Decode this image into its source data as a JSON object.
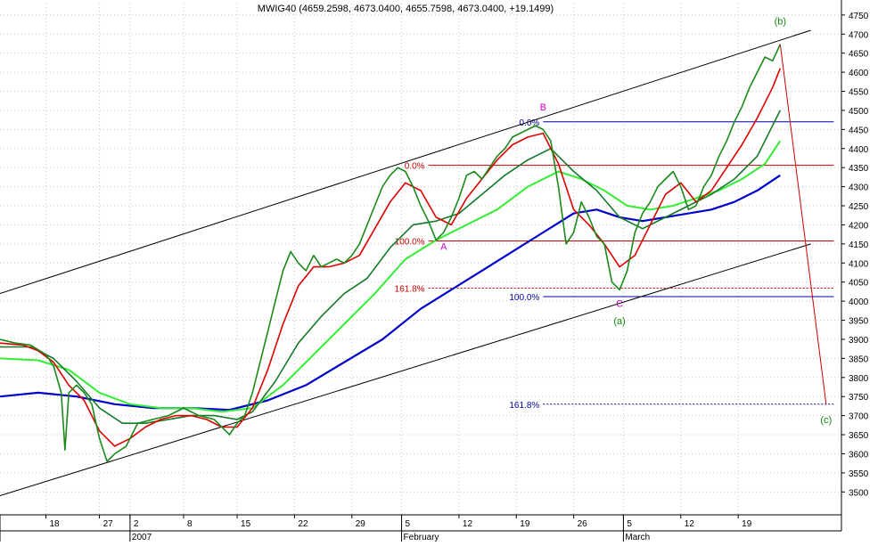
{
  "chart_data": {
    "type": "line",
    "title": "MWIG40 (4659.2598, 4673.0400, 4655.7598, 4673.0400, +19.1499)",
    "ylim": [
      3440,
      4780
    ],
    "y_ticks": [
      3500,
      3550,
      3600,
      3650,
      3700,
      3750,
      3800,
      3850,
      3900,
      3950,
      4000,
      4050,
      4100,
      4150,
      4200,
      4250,
      4300,
      4350,
      4400,
      4450,
      4500,
      4550,
      4600,
      4650,
      4700,
      4750
    ],
    "x_day_ticks": [
      {
        "day": "18",
        "month": 1,
        "date": 18
      },
      {
        "day": "27",
        "month": 1,
        "date": 27
      },
      {
        "day": "2",
        "month": 2,
        "date": 2
      },
      {
        "day": "8",
        "month": 2,
        "date": 8
      },
      {
        "day": "15",
        "month": 2,
        "date": 15
      },
      {
        "day": "22",
        "month": 2,
        "date": 22
      },
      {
        "day": "29",
        "month": 2,
        "date": 29
      },
      {
        "day": "5",
        "month": 3,
        "date": 5
      },
      {
        "day": "12",
        "month": 3,
        "date": 12
      },
      {
        "day": "19",
        "month": 3,
        "date": 19
      },
      {
        "day": "26",
        "month": 3,
        "date": 26
      },
      {
        "day": "5",
        "month": 4,
        "date": 5
      },
      {
        "day": "12",
        "month": 4,
        "date": 12
      },
      {
        "day": "19",
        "month": 4,
        "date": 19
      }
    ],
    "x_month_labels": [
      {
        "label": "2007",
        "month": 2
      },
      {
        "label": "February",
        "month": 3
      },
      {
        "label": "March",
        "month": 4
      }
    ],
    "x_month_breaks": [
      0,
      2,
      3,
      4
    ],
    "colors": {
      "price": "#1b8a1b",
      "ma_red": "#e00000",
      "ma_darkgreen": "#157a2a",
      "ma_lightgreen": "#33ee33",
      "ma_blue": "#0000cc",
      "channel": "#000000",
      "fib_red": "#cc0000",
      "fib_blue": "#0000aa",
      "wave_magenta": "#cc00cc",
      "wave_green": "#118811",
      "projection": "#cc0000"
    },
    "series": [
      {
        "key": "price",
        "values": [
          [
            0,
            3900
          ],
          [
            4,
            3890
          ],
          [
            8,
            3885
          ],
          [
            12,
            3860
          ],
          [
            14,
            3830
          ],
          [
            16,
            3760
          ],
          [
            17,
            3610
          ],
          [
            18,
            3760
          ],
          [
            20,
            3780
          ],
          [
            22,
            3760
          ],
          [
            24,
            3730
          ],
          [
            26,
            3640
          ],
          [
            28,
            3580
          ],
          [
            30,
            3600
          ],
          [
            33,
            3620
          ],
          [
            36,
            3680
          ],
          [
            40,
            3690
          ],
          [
            44,
            3700
          ],
          [
            48,
            3720
          ],
          [
            52,
            3700
          ],
          [
            56,
            3690
          ],
          [
            60,
            3650
          ],
          [
            62,
            3680
          ],
          [
            64,
            3700
          ],
          [
            66,
            3760
          ],
          [
            68,
            3840
          ],
          [
            70,
            3920
          ],
          [
            72,
            4000
          ],
          [
            74,
            4080
          ],
          [
            76,
            4130
          ],
          [
            78,
            4100
          ],
          [
            80,
            4080
          ],
          [
            82,
            4120
          ],
          [
            84,
            4090
          ],
          [
            86,
            4100
          ],
          [
            88,
            4110
          ],
          [
            90,
            4100
          ],
          [
            92,
            4120
          ],
          [
            94,
            4150
          ],
          [
            96,
            4200
          ],
          [
            98,
            4250
          ],
          [
            100,
            4300
          ],
          [
            102,
            4330
          ],
          [
            104,
            4350
          ],
          [
            106,
            4340
          ],
          [
            108,
            4300
          ],
          [
            110,
            4250
          ],
          [
            112,
            4210
          ],
          [
            114,
            4160
          ],
          [
            116,
            4180
          ],
          [
            118,
            4220
          ],
          [
            120,
            4270
          ],
          [
            122,
            4330
          ],
          [
            124,
            4340
          ],
          [
            126,
            4320
          ],
          [
            128,
            4350
          ],
          [
            130,
            4380
          ],
          [
            132,
            4400
          ],
          [
            134,
            4430
          ],
          [
            136,
            4440
          ],
          [
            138,
            4450
          ],
          [
            140,
            4460
          ],
          [
            142,
            4450
          ],
          [
            144,
            4420
          ],
          [
            146,
            4300
          ],
          [
            148,
            4150
          ],
          [
            150,
            4180
          ],
          [
            152,
            4260
          ],
          [
            154,
            4220
          ],
          [
            156,
            4170
          ],
          [
            158,
            4150
          ],
          [
            160,
            4050
          ],
          [
            162,
            4030
          ],
          [
            164,
            4080
          ],
          [
            166,
            4180
          ],
          [
            168,
            4230
          ],
          [
            170,
            4260
          ],
          [
            172,
            4300
          ],
          [
            174,
            4320
          ],
          [
            176,
            4340
          ],
          [
            178,
            4300
          ],
          [
            180,
            4240
          ],
          [
            182,
            4250
          ],
          [
            184,
            4300
          ],
          [
            186,
            4330
          ],
          [
            188,
            4380
          ],
          [
            190,
            4420
          ],
          [
            192,
            4470
          ],
          [
            194,
            4510
          ],
          [
            196,
            4560
          ],
          [
            198,
            4600
          ],
          [
            200,
            4640
          ],
          [
            202,
            4630
          ],
          [
            204,
            4673
          ]
        ]
      },
      {
        "key": "ma_red",
        "values": [
          [
            0,
            3890
          ],
          [
            6,
            3885
          ],
          [
            10,
            3870
          ],
          [
            14,
            3840
          ],
          [
            18,
            3780
          ],
          [
            22,
            3740
          ],
          [
            26,
            3660
          ],
          [
            30,
            3620
          ],
          [
            34,
            3640
          ],
          [
            38,
            3670
          ],
          [
            42,
            3690
          ],
          [
            46,
            3700
          ],
          [
            50,
            3700
          ],
          [
            54,
            3690
          ],
          [
            58,
            3670
          ],
          [
            62,
            3670
          ],
          [
            66,
            3720
          ],
          [
            70,
            3820
          ],
          [
            74,
            3940
          ],
          [
            78,
            4040
          ],
          [
            82,
            4090
          ],
          [
            86,
            4090
          ],
          [
            90,
            4100
          ],
          [
            94,
            4120
          ],
          [
            98,
            4190
          ],
          [
            102,
            4260
          ],
          [
            106,
            4310
          ],
          [
            110,
            4290
          ],
          [
            114,
            4220
          ],
          [
            118,
            4200
          ],
          [
            122,
            4270
          ],
          [
            126,
            4320
          ],
          [
            130,
            4370
          ],
          [
            134,
            4410
          ],
          [
            138,
            4430
          ],
          [
            142,
            4440
          ],
          [
            146,
            4360
          ],
          [
            150,
            4240
          ],
          [
            154,
            4200
          ],
          [
            158,
            4150
          ],
          [
            162,
            4090
          ],
          [
            166,
            4120
          ],
          [
            170,
            4200
          ],
          [
            174,
            4280
          ],
          [
            178,
            4310
          ],
          [
            182,
            4260
          ],
          [
            186,
            4290
          ],
          [
            190,
            4350
          ],
          [
            194,
            4410
          ],
          [
            198,
            4480
          ],
          [
            202,
            4560
          ],
          [
            204,
            4610
          ]
        ]
      },
      {
        "key": "ma_darkgreen",
        "values": [
          [
            0,
            3880
          ],
          [
            8,
            3880
          ],
          [
            14,
            3850
          ],
          [
            20,
            3790
          ],
          [
            26,
            3720
          ],
          [
            32,
            3680
          ],
          [
            38,
            3680
          ],
          [
            44,
            3690
          ],
          [
            50,
            3700
          ],
          [
            56,
            3700
          ],
          [
            62,
            3690
          ],
          [
            66,
            3710
          ],
          [
            72,
            3790
          ],
          [
            78,
            3890
          ],
          [
            84,
            3960
          ],
          [
            90,
            4020
          ],
          [
            96,
            4060
          ],
          [
            102,
            4140
          ],
          [
            108,
            4200
          ],
          [
            114,
            4210
          ],
          [
            120,
            4230
          ],
          [
            126,
            4280
          ],
          [
            132,
            4330
          ],
          [
            138,
            4370
          ],
          [
            144,
            4400
          ],
          [
            150,
            4340
          ],
          [
            156,
            4290
          ],
          [
            162,
            4220
          ],
          [
            168,
            4190
          ],
          [
            174,
            4220
          ],
          [
            180,
            4250
          ],
          [
            186,
            4280
          ],
          [
            192,
            4320
          ],
          [
            198,
            4380
          ],
          [
            204,
            4500
          ]
        ]
      },
      {
        "key": "ma_lightgreen",
        "values": [
          [
            0,
            3850
          ],
          [
            10,
            3845
          ],
          [
            18,
            3820
          ],
          [
            26,
            3760
          ],
          [
            34,
            3730
          ],
          [
            42,
            3720
          ],
          [
            50,
            3720
          ],
          [
            58,
            3710
          ],
          [
            66,
            3720
          ],
          [
            74,
            3780
          ],
          [
            82,
            3860
          ],
          [
            90,
            3940
          ],
          [
            98,
            4020
          ],
          [
            106,
            4110
          ],
          [
            114,
            4160
          ],
          [
            122,
            4200
          ],
          [
            130,
            4240
          ],
          [
            138,
            4300
          ],
          [
            146,
            4340
          ],
          [
            152,
            4320
          ],
          [
            158,
            4290
          ],
          [
            164,
            4250
          ],
          [
            170,
            4240
          ],
          [
            176,
            4250
          ],
          [
            182,
            4270
          ],
          [
            188,
            4290
          ],
          [
            194,
            4320
          ],
          [
            200,
            4360
          ],
          [
            204,
            4420
          ]
        ]
      },
      {
        "key": "ma_blue",
        "values": [
          [
            0,
            3750
          ],
          [
            10,
            3760
          ],
          [
            20,
            3750
          ],
          [
            30,
            3730
          ],
          [
            40,
            3720
          ],
          [
            50,
            3720
          ],
          [
            60,
            3715
          ],
          [
            70,
            3740
          ],
          [
            80,
            3780
          ],
          [
            90,
            3840
          ],
          [
            100,
            3900
          ],
          [
            110,
            3980
          ],
          [
            118,
            4030
          ],
          [
            126,
            4080
          ],
          [
            134,
            4130
          ],
          [
            142,
            4180
          ],
          [
            150,
            4230
          ],
          [
            156,
            4240
          ],
          [
            162,
            4220
          ],
          [
            168,
            4210
          ],
          [
            174,
            4220
          ],
          [
            180,
            4230
          ],
          [
            186,
            4240
          ],
          [
            192,
            4260
          ],
          [
            198,
            4290
          ],
          [
            204,
            4330
          ]
        ]
      }
    ],
    "channel_lines": [
      {
        "from": [
          0,
          4020
        ],
        "to": [
          212,
          4710
        ]
      },
      {
        "from": [
          0,
          3490
        ],
        "to": [
          212,
          4150
        ]
      }
    ],
    "projection_line": {
      "from": [
        204,
        4673
      ],
      "to": [
        216,
        3730
      ]
    },
    "fib_levels": [
      {
        "label": "0.0%",
        "value": 4356,
        "color_key": "fib_red",
        "x0": 112,
        "x1": 218,
        "dashed": false
      },
      {
        "label": "100.0%",
        "value": 4158,
        "color_key": "fib_red",
        "x0": 112,
        "x1": 218,
        "dashed": false
      },
      {
        "label": "161.8%",
        "value": 4034,
        "color_key": "fib_red",
        "x0": 112,
        "x1": 218,
        "dashed": true
      },
      {
        "label": "0.0%",
        "value": 4470,
        "color_key": "fib_blue",
        "x0": 142,
        "x1": 218,
        "dashed": false
      },
      {
        "label": "100.0%",
        "value": 4012,
        "color_key": "fib_blue",
        "x0": 142,
        "x1": 218,
        "dashed": false
      },
      {
        "label": "161.8%",
        "value": 3730,
        "color_key": "fib_blue",
        "x0": 142,
        "x1": 218,
        "dashed": true
      }
    ],
    "wave_labels": [
      {
        "label": "A",
        "x": 116,
        "y": 4135,
        "color_key": "wave_magenta"
      },
      {
        "label": "B",
        "x": 142,
        "y": 4500,
        "color_key": "wave_magenta"
      },
      {
        "label": "C",
        "x": 162,
        "y": 3985,
        "color_key": "wave_magenta"
      },
      {
        "label": "(a)",
        "x": 162,
        "y": 3940,
        "color_key": "wave_green"
      },
      {
        "label": "(b)",
        "x": 204,
        "y": 4725,
        "color_key": "wave_green"
      },
      {
        "label": "(c)",
        "x": 216,
        "y": 3680,
        "color_key": "wave_green"
      }
    ],
    "xlim": [
      0,
      220
    ]
  }
}
